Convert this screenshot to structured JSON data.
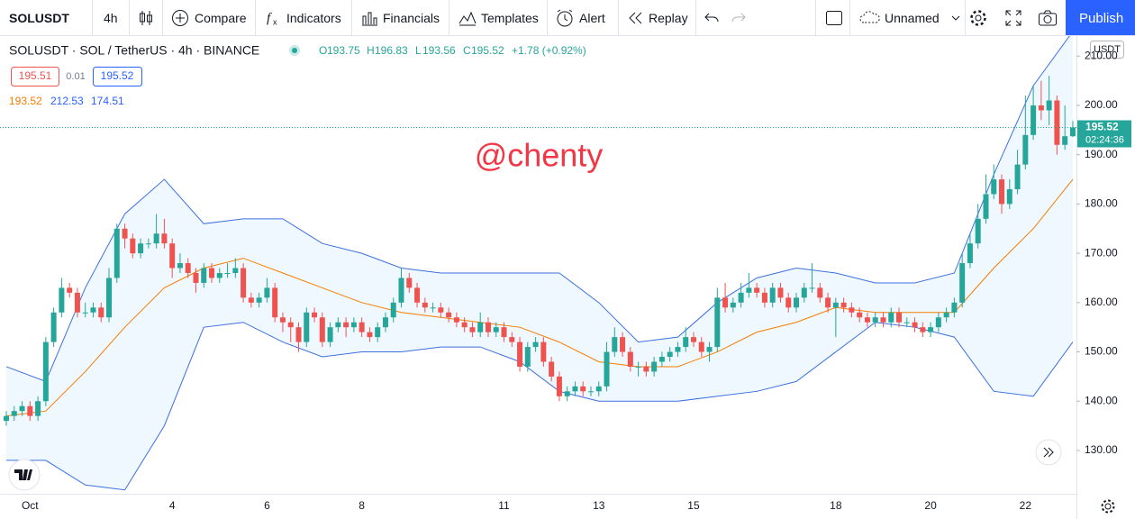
{
  "toolbar": {
    "symbol": "SOLUSDT",
    "interval": "4h",
    "compare": "Compare",
    "indicators": "Indicators",
    "financials": "Financials",
    "templates": "Templates",
    "alert": "Alert",
    "replay": "Replay",
    "layout": "Unnamed",
    "publish": "Publish"
  },
  "legend": {
    "title": "SOLUSDT · SOL / TetherUS · 4h · BINANCE",
    "o": "O",
    "h": "H",
    "l": "L",
    "c": "C",
    "change": "+1.78 (+0.92%)",
    "sell": "195.51",
    "spread": "0.01",
    "buy": "195.52",
    "bb": [
      "193.52",
      "212.53",
      "174.51"
    ]
  },
  "chart_data": {
    "type": "candlestick",
    "watermark": "@chenty",
    "currency": "USDT",
    "countdown": "02:24:36",
    "up_color": "#26a69a",
    "down_color": "#ef5350",
    "grid": false,
    "ylim": [
      121.22,
      214.07
    ],
    "yticks": [
      {
        "value": 130,
        "label": "130.00"
      },
      {
        "value": 140,
        "label": "140.00"
      },
      {
        "value": 150,
        "label": "150.00"
      },
      {
        "value": 160,
        "label": "160.00"
      },
      {
        "value": 170,
        "label": "170.00"
      },
      {
        "value": 180,
        "label": "180.00"
      },
      {
        "value": 190,
        "label": "190.00"
      },
      {
        "value": 200,
        "label": "200.00"
      },
      {
        "value": 210,
        "label": "210.00"
      }
    ],
    "categories": [
      null,
      null,
      null,
      "Oct",
      null,
      null,
      null,
      null,
      null,
      null,
      null,
      null,
      null,
      null,
      null,
      null,
      null,
      null,
      null,
      null,
      null,
      "4",
      null,
      null,
      null,
      null,
      null,
      null,
      null,
      null,
      null,
      null,
      null,
      "6",
      null,
      null,
      null,
      null,
      null,
      null,
      null,
      null,
      null,
      null,
      null,
      "8",
      null,
      null,
      null,
      null,
      null,
      null,
      null,
      null,
      null,
      null,
      null,
      null,
      null,
      null,
      null,
      null,
      null,
      "11",
      null,
      null,
      null,
      null,
      null,
      null,
      null,
      null,
      null,
      null,
      null,
      "13",
      null,
      null,
      null,
      null,
      null,
      null,
      null,
      null,
      null,
      null,
      null,
      "15",
      null,
      null,
      null,
      null,
      null,
      null,
      null,
      null,
      null,
      null,
      null,
      null,
      null,
      null,
      null,
      null,
      null,
      "18",
      null,
      null,
      null,
      null,
      null,
      null,
      null,
      null,
      null,
      null,
      null,
      "20",
      null,
      null,
      null,
      null,
      null,
      null,
      null,
      null,
      null,
      null,
      null,
      "22",
      null,
      null,
      null,
      null,
      null,
      null
    ],
    "candles": [
      [
        136,
        138,
        135,
        137
      ],
      [
        137,
        139,
        136,
        138
      ],
      [
        138,
        140,
        137,
        139
      ],
      [
        139,
        140,
        136,
        137
      ],
      [
        137,
        141,
        136,
        140
      ],
      [
        140,
        153,
        139,
        152
      ],
      [
        152,
        159,
        151,
        158
      ],
      [
        158,
        165,
        157,
        163
      ],
      [
        163,
        164,
        161,
        162
      ],
      [
        162,
        163,
        157,
        158
      ],
      [
        158,
        160,
        157,
        158
      ],
      [
        158,
        160,
        157,
        159
      ],
      [
        159,
        160,
        156,
        157
      ],
      [
        157,
        167,
        156,
        165
      ],
      [
        165,
        176,
        164,
        175
      ],
      [
        175,
        176,
        171,
        173
      ],
      [
        173,
        174,
        169,
        170
      ],
      [
        170,
        173,
        169,
        172
      ],
      [
        172,
        173,
        171,
        172
      ],
      [
        172,
        178,
        171,
        174
      ],
      [
        174,
        177,
        171,
        172
      ],
      [
        172,
        173,
        165,
        167
      ],
      [
        167,
        170,
        166,
        168
      ],
      [
        168,
        169,
        165,
        166
      ],
      [
        166,
        167,
        162,
        164
      ],
      [
        164,
        168,
        163,
        167
      ],
      [
        167,
        168,
        164,
        165
      ],
      [
        165,
        167,
        164,
        166
      ],
      [
        166,
        168,
        165,
        166
      ],
      [
        166,
        169,
        165,
        167
      ],
      [
        167,
        168,
        160,
        161
      ],
      [
        161,
        162,
        159,
        160
      ],
      [
        160,
        162,
        159,
        161
      ],
      [
        161,
        165,
        160,
        163
      ],
      [
        163,
        164,
        156,
        157
      ],
      [
        157,
        158,
        154,
        156
      ],
      [
        156,
        157,
        152,
        155
      ],
      [
        155,
        156,
        150,
        152
      ],
      [
        152,
        159,
        151,
        158
      ],
      [
        158,
        159,
        156,
        157
      ],
      [
        157,
        158,
        151,
        152
      ],
      [
        152,
        156,
        151,
        155
      ],
      [
        155,
        157,
        154,
        156
      ],
      [
        156,
        157,
        153,
        155
      ],
      [
        155,
        157,
        154,
        156
      ],
      [
        156,
        157,
        153,
        154
      ],
      [
        154,
        155,
        152,
        153
      ],
      [
        153,
        156,
        152,
        155
      ],
      [
        155,
        158,
        154,
        157
      ],
      [
        157,
        161,
        156,
        160
      ],
      [
        160,
        167,
        159,
        165
      ],
      [
        165,
        166,
        162,
        163
      ],
      [
        163,
        164,
        159,
        160
      ],
      [
        160,
        161,
        158,
        159
      ],
      [
        159,
        160,
        158,
        159
      ],
      [
        159,
        160,
        157,
        158
      ],
      [
        158,
        159,
        156,
        157
      ],
      [
        157,
        158,
        155,
        156
      ],
      [
        156,
        157,
        154,
        155
      ],
      [
        155,
        156,
        153,
        154
      ],
      [
        154,
        158,
        153,
        156
      ],
      [
        156,
        157,
        153,
        154
      ],
      [
        154,
        156,
        153,
        155
      ],
      [
        155,
        156,
        152,
        153
      ],
      [
        153,
        154,
        151,
        152
      ],
      [
        152,
        153,
        146,
        147
      ],
      [
        147,
        152,
        146,
        151
      ],
      [
        151,
        153,
        150,
        152
      ],
      [
        152,
        153,
        147,
        148
      ],
      [
        148,
        149,
        144,
        145
      ],
      [
        145,
        146,
        140,
        141
      ],
      [
        141,
        143,
        140,
        142
      ],
      [
        142,
        144,
        141,
        143
      ],
      [
        143,
        144,
        141,
        142
      ],
      [
        142,
        143,
        141,
        142
      ],
      [
        142,
        144,
        141,
        143
      ],
      [
        143,
        152,
        142,
        150
      ],
      [
        150,
        155,
        149,
        153
      ],
      [
        153,
        154,
        149,
        150
      ],
      [
        150,
        151,
        146,
        147
      ],
      [
        147,
        148,
        145,
        147
      ],
      [
        147,
        148,
        145,
        146
      ],
      [
        146,
        149,
        145,
        148
      ],
      [
        148,
        150,
        147,
        149
      ],
      [
        149,
        151,
        148,
        150
      ],
      [
        150,
        152,
        149,
        151
      ],
      [
        151,
        155,
        150,
        153
      ],
      [
        153,
        154,
        151,
        152
      ],
      [
        152,
        153,
        149,
        150
      ],
      [
        150,
        152,
        148,
        151
      ],
      [
        151,
        163,
        150,
        161
      ],
      [
        161,
        164,
        158,
        159
      ],
      [
        159,
        161,
        158,
        160
      ],
      [
        160,
        164,
        159,
        162
      ],
      [
        162,
        166,
        161,
        163
      ],
      [
        163,
        164,
        161,
        162
      ],
      [
        162,
        163,
        159,
        160
      ],
      [
        160,
        164,
        159,
        163
      ],
      [
        163,
        164,
        160,
        161
      ],
      [
        161,
        162,
        158,
        159
      ],
      [
        159,
        162,
        158,
        161
      ],
      [
        161,
        164,
        160,
        163
      ],
      [
        163,
        168,
        162,
        163
      ],
      [
        163,
        164,
        160,
        161
      ],
      [
        161,
        162,
        158,
        159
      ],
      [
        159,
        161,
        153,
        160
      ],
      [
        160,
        161,
        158,
        159
      ],
      [
        159,
        160,
        157,
        158
      ],
      [
        158,
        159,
        156,
        157
      ],
      [
        157,
        158,
        155,
        156
      ],
      [
        156,
        158,
        155,
        157
      ],
      [
        157,
        158,
        155,
        156
      ],
      [
        156,
        159,
        155,
        158
      ],
      [
        158,
        159,
        155,
        156
      ],
      [
        156,
        157,
        155,
        156
      ],
      [
        156,
        157,
        154,
        155
      ],
      [
        155,
        156,
        153,
        154
      ],
      [
        154,
        156,
        153,
        155
      ],
      [
        155,
        158,
        154,
        157
      ],
      [
        157,
        159,
        156,
        158
      ],
      [
        158,
        161,
        157,
        160
      ],
      [
        160,
        170,
        159,
        168
      ],
      [
        168,
        174,
        167,
        172
      ],
      [
        172,
        180,
        171,
        177
      ],
      [
        177,
        186,
        176,
        182
      ],
      [
        182,
        188,
        181,
        185
      ],
      [
        185,
        186,
        178,
        180
      ],
      [
        180,
        185,
        179,
        183
      ],
      [
        183,
        191,
        182,
        188
      ],
      [
        188,
        202,
        187,
        194
      ],
      [
        194,
        204,
        193,
        200
      ],
      [
        200,
        205,
        197,
        199
      ],
      [
        199,
        206,
        196,
        201
      ],
      [
        201,
        202,
        190,
        192
      ],
      [
        192,
        200,
        191,
        193.75
      ],
      [
        193.75,
        196.83,
        193.56,
        195.52
      ]
    ],
    "bands": {
      "x": [
        0,
        5,
        10,
        15,
        20,
        25,
        30,
        35,
        40,
        45,
        50,
        55,
        60,
        65,
        70,
        75,
        80,
        85,
        90,
        95,
        100,
        105,
        110,
        115,
        120,
        125,
        130,
        135
      ],
      "upper": [
        147,
        144,
        163,
        178,
        185,
        176,
        177,
        177,
        172,
        170,
        167,
        166,
        166,
        166,
        166,
        160,
        152,
        153,
        160,
        165,
        167,
        166,
        164,
        164,
        166,
        186,
        204,
        215
      ],
      "middle": [
        137,
        138,
        146,
        155,
        163,
        167,
        169,
        166,
        163,
        160,
        158,
        157,
        156,
        155,
        152,
        148,
        147,
        147,
        150,
        154,
        156,
        159,
        158,
        158,
        158,
        167,
        175,
        185
      ],
      "lower": [
        128,
        128,
        123,
        122,
        135,
        155,
        156,
        152,
        149,
        150,
        150,
        151,
        151,
        148,
        142,
        140,
        140,
        140,
        141,
        142,
        144,
        150,
        156,
        155,
        153,
        142,
        141,
        152
      ],
      "band_color": "#3d6fe0",
      "basis_color": "#f57c00"
    }
  }
}
